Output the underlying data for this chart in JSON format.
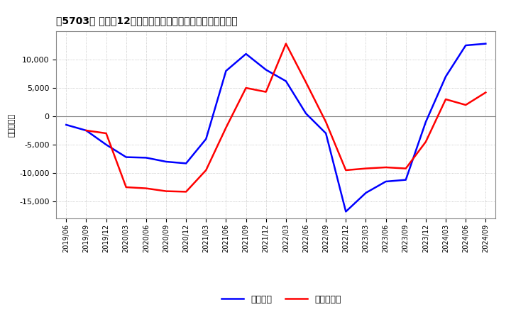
{
  "title": "５5703］ 利益だ12か月移動合計の対前年同期増減額の推移",
  "ylabel": "（百万円）",
  "background_color": "#ffffff",
  "plot_bg_color": "#ffffff",
  "grid_color": "#aaaaaa",
  "ylim": [
    -18000,
    15000
  ],
  "yticks": [
    -15000,
    -10000,
    -5000,
    0,
    5000,
    10000
  ],
  "x_labels": [
    "2019/06",
    "2019/09",
    "2019/12",
    "2020/03",
    "2020/06",
    "2020/09",
    "2020/12",
    "2021/03",
    "2021/06",
    "2021/09",
    "2021/12",
    "2022/03",
    "2022/06",
    "2022/09",
    "2022/12",
    "2023/03",
    "2023/06",
    "2023/09",
    "2023/12",
    "2024/03",
    "2024/06",
    "2024/09"
  ],
  "blue_series": {
    "label": "経常利益",
    "color": "#0000ff",
    "values": [
      -1500,
      -2500,
      -5000,
      -7200,
      -7300,
      -8000,
      -8300,
      -4000,
      8000,
      11000,
      8200,
      6200,
      500,
      -3000,
      -16800,
      -13500,
      -11500,
      -11200,
      -1000,
      7000,
      12500,
      12800
    ]
  },
  "red_series": {
    "label": "当期純利益",
    "color": "#ff0000",
    "values": [
      null,
      -2500,
      -3000,
      -12500,
      -12700,
      -13200,
      -13300,
      -9500,
      -2000,
      5000,
      4300,
      12800,
      6000,
      -1000,
      -9500,
      -9200,
      -9000,
      -9200,
      -4500,
      3000,
      2000,
      4200
    ]
  },
  "legend_label_blue": "経常利益",
  "legend_label_red": "当期純利益",
  "line_width": 1.8,
  "zero_line_color": "#808080"
}
